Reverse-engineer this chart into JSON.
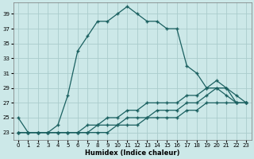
{
  "xlabel": "Humidex (Indice chaleur)",
  "bg_color": "#cce8e8",
  "grid_color": "#aacccc",
  "line_color": "#1a6060",
  "xlim": [
    -0.5,
    23.5
  ],
  "ylim": [
    22.0,
    40.5
  ],
  "yticks": [
    23,
    25,
    27,
    29,
    31,
    33,
    35,
    37,
    39
  ],
  "xticks": [
    0,
    1,
    2,
    3,
    4,
    5,
    6,
    7,
    8,
    9,
    10,
    11,
    12,
    13,
    14,
    15,
    16,
    17,
    18,
    19,
    20,
    21,
    22,
    23
  ],
  "curves": [
    {
      "x": [
        0,
        1,
        2,
        3,
        4,
        5,
        6,
        7,
        8,
        9,
        10,
        11,
        12,
        13,
        14,
        15,
        16,
        17,
        18,
        19,
        20,
        21,
        22,
        23
      ],
      "y": [
        25,
        23,
        23,
        23,
        24,
        28,
        34,
        36,
        38,
        38,
        39,
        40,
        39,
        38,
        38,
        37,
        37,
        32,
        31,
        29,
        29,
        29,
        27,
        27
      ]
    },
    {
      "x": [
        0,
        1,
        2,
        3,
        4,
        5,
        6,
        7,
        8,
        9,
        10,
        11,
        12,
        13,
        14,
        15,
        16,
        17,
        18,
        19,
        20,
        21,
        22,
        23
      ],
      "y": [
        23,
        23,
        23,
        23,
        23,
        23,
        23,
        24,
        24,
        25,
        25,
        26,
        26,
        27,
        27,
        27,
        27,
        28,
        28,
        29,
        30,
        29,
        28,
        27
      ]
    },
    {
      "x": [
        0,
        1,
        2,
        3,
        4,
        5,
        6,
        7,
        8,
        9,
        10,
        11,
        12,
        13,
        14,
        15,
        16,
        17,
        18,
        19,
        20,
        21,
        22,
        23
      ],
      "y": [
        23,
        23,
        23,
        23,
        23,
        23,
        23,
        23,
        24,
        24,
        24,
        25,
        25,
        25,
        26,
        26,
        26,
        27,
        27,
        28,
        29,
        28,
        27,
        27
      ]
    },
    {
      "x": [
        0,
        1,
        2,
        3,
        4,
        5,
        6,
        7,
        8,
        9,
        10,
        11,
        12,
        13,
        14,
        15,
        16,
        17,
        18,
        19,
        20,
        21,
        22,
        23
      ],
      "y": [
        23,
        23,
        23,
        23,
        23,
        23,
        23,
        23,
        23,
        23,
        24,
        24,
        24,
        25,
        25,
        25,
        25,
        26,
        26,
        27,
        27,
        27,
        27,
        27
      ]
    }
  ]
}
